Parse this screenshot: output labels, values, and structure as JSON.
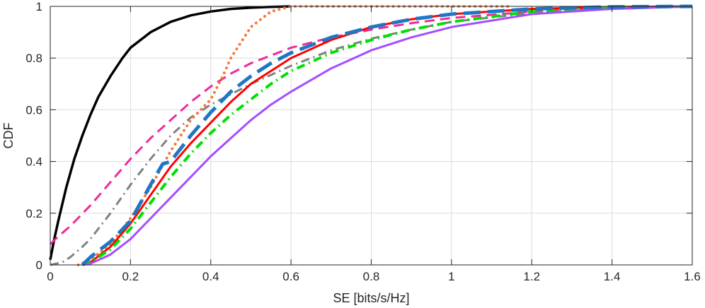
{
  "chart_data": {
    "type": "line",
    "title": "",
    "xlabel": "SE [bits/s/Hz]",
    "ylabel": "CDF",
    "xlim": [
      0,
      1.6
    ],
    "ylim": [
      0,
      1
    ],
    "grid": true,
    "x_ticks": [
      0,
      0.2,
      0.4,
      0.6,
      0.8,
      1,
      1.2,
      1.4,
      1.6
    ],
    "x_tick_labels": [
      "0",
      "0.2",
      "0.4",
      "0.6",
      "0.8",
      "1",
      "1.2",
      "1.4",
      "1.6"
    ],
    "y_ticks": [
      0,
      0.2,
      0.4,
      0.6,
      0.8,
      1
    ],
    "y_tick_labels": [
      "0",
      "0.2",
      "0.4",
      "0.6",
      "0.8",
      "1"
    ],
    "series": [
      {
        "name": "solid-black",
        "color": "#000000",
        "style": "solid",
        "width": 3.5,
        "x": [
          0,
          0.01,
          0.02,
          0.04,
          0.06,
          0.08,
          0.1,
          0.12,
          0.15,
          0.18,
          0.2,
          0.25,
          0.3,
          0.35,
          0.4,
          0.45,
          0.5,
          0.55,
          0.6
        ],
        "y": [
          0.02,
          0.1,
          0.17,
          0.3,
          0.41,
          0.5,
          0.58,
          0.65,
          0.73,
          0.8,
          0.84,
          0.9,
          0.94,
          0.965,
          0.98,
          0.99,
          0.995,
          0.998,
          1
        ]
      },
      {
        "name": "dashed-magenta",
        "color": "#ee2a9b",
        "style": "dashed",
        "width": 3,
        "x": [
          0,
          0.02,
          0.05,
          0.1,
          0.15,
          0.2,
          0.25,
          0.3,
          0.35,
          0.4,
          0.45,
          0.5,
          0.6,
          0.7,
          0.8,
          0.9,
          1,
          1.2,
          1.4,
          1.6
        ],
        "y": [
          0.08,
          0.11,
          0.15,
          0.23,
          0.32,
          0.41,
          0.49,
          0.56,
          0.63,
          0.69,
          0.74,
          0.78,
          0.84,
          0.88,
          0.91,
          0.935,
          0.955,
          0.98,
          0.995,
          1
        ]
      },
      {
        "name": "dashdot-gray",
        "color": "#808080",
        "style": "dashdot",
        "width": 3,
        "x": [
          0,
          0.03,
          0.05,
          0.08,
          0.1,
          0.15,
          0.2,
          0.25,
          0.3,
          0.35,
          0.4,
          0.45,
          0.5,
          0.6,
          0.7,
          0.8,
          0.9,
          1,
          1.2,
          1.4,
          1.6
        ],
        "y": [
          0,
          0.01,
          0.03,
          0.07,
          0.1,
          0.2,
          0.31,
          0.41,
          0.5,
          0.57,
          0.62,
          0.66,
          0.7,
          0.77,
          0.83,
          0.875,
          0.91,
          0.94,
          0.975,
          0.99,
          1
        ]
      },
      {
        "name": "dotted-orange",
        "color": "#f47b3b",
        "style": "dotted",
        "width": 4,
        "x": [
          0.07,
          0.1,
          0.15,
          0.2,
          0.25,
          0.3,
          0.35,
          0.4,
          0.43,
          0.45,
          0.5,
          0.55,
          0.6,
          0.8,
          0.93,
          1.15
        ],
        "y": [
          0,
          0.02,
          0.08,
          0.18,
          0.3,
          0.44,
          0.56,
          0.64,
          0.73,
          0.8,
          0.92,
          0.98,
          1,
          1,
          1,
          1
        ]
      },
      {
        "name": "solid-red",
        "color": "#ff0000",
        "style": "solid",
        "width": 3,
        "x": [
          0.08,
          0.1,
          0.15,
          0.2,
          0.25,
          0.3,
          0.35,
          0.4,
          0.45,
          0.5,
          0.55,
          0.6,
          0.7,
          0.8,
          0.9,
          1,
          1.2,
          1.4,
          1.6
        ],
        "y": [
          0,
          0.01,
          0.07,
          0.16,
          0.27,
          0.38,
          0.47,
          0.55,
          0.63,
          0.7,
          0.75,
          0.8,
          0.87,
          0.92,
          0.95,
          0.97,
          0.99,
          0.998,
          1
        ]
      },
      {
        "name": "dashdot-green",
        "color": "#00e000",
        "style": "dashdot",
        "width": 4,
        "x": [
          0.08,
          0.1,
          0.15,
          0.2,
          0.25,
          0.3,
          0.35,
          0.4,
          0.45,
          0.5,
          0.55,
          0.6,
          0.7,
          0.8,
          0.9,
          1,
          1.2,
          1.4,
          1.6
        ],
        "y": [
          0,
          0.01,
          0.06,
          0.14,
          0.24,
          0.34,
          0.43,
          0.51,
          0.58,
          0.64,
          0.7,
          0.75,
          0.82,
          0.87,
          0.91,
          0.94,
          0.98,
          0.995,
          1
        ]
      },
      {
        "name": "solid-purple",
        "color": "#a64dff",
        "style": "solid",
        "width": 3,
        "x": [
          0.08,
          0.1,
          0.15,
          0.2,
          0.25,
          0.3,
          0.35,
          0.4,
          0.45,
          0.5,
          0.55,
          0.6,
          0.7,
          0.8,
          0.9,
          1,
          1.2,
          1.4,
          1.6
        ],
        "y": [
          0,
          0.005,
          0.04,
          0.1,
          0.18,
          0.26,
          0.34,
          0.42,
          0.49,
          0.56,
          0.62,
          0.67,
          0.76,
          0.83,
          0.88,
          0.92,
          0.97,
          0.99,
          1
        ]
      },
      {
        "name": "dashed-blue",
        "color": "#1f77c4",
        "style": "longdash",
        "width": 5,
        "x": [
          0.08,
          0.1,
          0.15,
          0.2,
          0.25,
          0.28,
          0.3,
          0.35,
          0.4,
          0.45,
          0.5,
          0.55,
          0.6,
          0.7,
          0.8,
          0.9,
          1,
          1.2,
          1.4,
          1.6
        ],
        "y": [
          0,
          0.03,
          0.09,
          0.17,
          0.31,
          0.39,
          0.4,
          0.5,
          0.59,
          0.67,
          0.73,
          0.78,
          0.82,
          0.88,
          0.92,
          0.95,
          0.97,
          0.99,
          0.998,
          1
        ]
      }
    ]
  }
}
